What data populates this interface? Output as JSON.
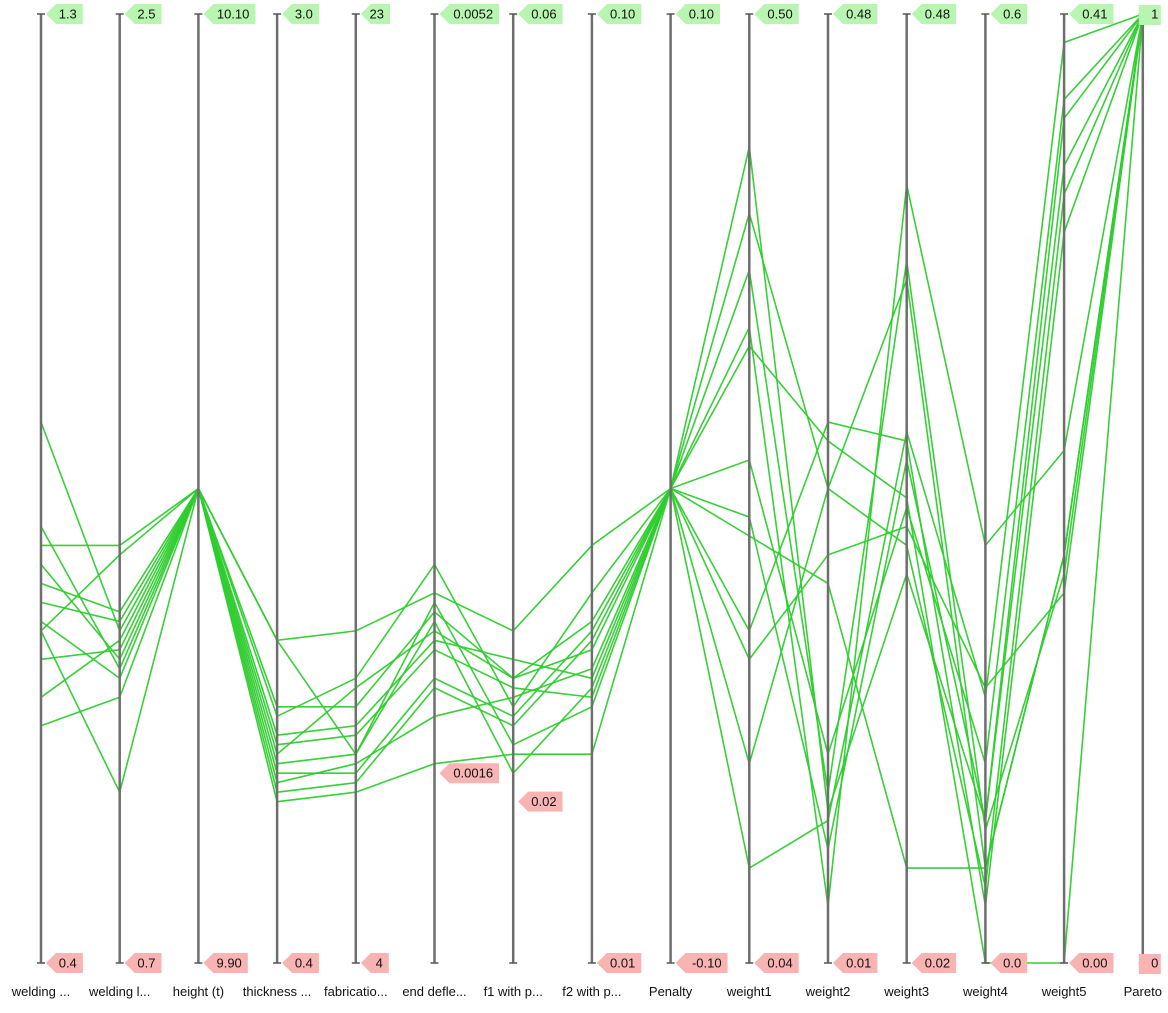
{
  "chart_data": {
    "type": "parallel-coordinates",
    "axes": [
      {
        "label": "welding ...",
        "max_label": "1.3",
        "min_label": "0.4"
      },
      {
        "label": "welding l...",
        "max_label": "2.5",
        "min_label": "0.7"
      },
      {
        "label": "height (t)",
        "max_label": "10.10",
        "min_label": "9.90"
      },
      {
        "label": "thickness ...",
        "max_label": "3.0",
        "min_label": "0.4"
      },
      {
        "label": "fabricatio...",
        "max_label": "23",
        "min_label": "4"
      },
      {
        "label": "end defle...",
        "max_label": "0.0052",
        "min_label": "0.0016"
      },
      {
        "label": "f1 with p...",
        "max_label": "0.06",
        "min_label": "0.02"
      },
      {
        "label": "f2 with p...",
        "max_label": "0.10",
        "min_label": "0.01"
      },
      {
        "label": "Penalty",
        "max_label": "0.10",
        "min_label": "-0.10"
      },
      {
        "label": "weight1",
        "max_label": "0.50",
        "min_label": "0.04"
      },
      {
        "label": "weight2",
        "max_label": "0.48",
        "min_label": "0.01"
      },
      {
        "label": "weight3",
        "max_label": "0.48",
        "min_label": "0.02"
      },
      {
        "label": "weight4",
        "max_label": "0.6",
        "min_label": "0.0"
      },
      {
        "label": "weight5",
        "max_label": "0.41",
        "min_label": "0.00"
      },
      {
        "label": "Pareto",
        "max_label": "1",
        "min_label": "0"
      }
    ],
    "range_note": "each axis normalized; 1 = top of axis (max), 0 = bottom (min)",
    "series": [
      {
        "values": [
          0.57,
          0.35,
          0.5,
          0.34,
          0.35,
          0.39,
          0.35,
          0.44,
          0.5,
          0.65,
          0.55,
          0.49,
          0.0,
          0.0,
          1
        ]
      },
      {
        "values": [
          0.44,
          0.44,
          0.5,
          0.26,
          0.3,
          0.42,
          0.27,
          0.39,
          0.5,
          0.79,
          0.5,
          0.72,
          0.1,
          0.43,
          1
        ]
      },
      {
        "values": [
          0.36,
          0.3,
          0.5,
          0.24,
          0.25,
          0.34,
          0.32,
          0.3,
          0.5,
          0.53,
          0.22,
          0.48,
          0.21,
          0.91,
          1
        ]
      },
      {
        "values": [
          0.42,
          0.32,
          0.5,
          0.27,
          0.27,
          0.37,
          0.3,
          0.33,
          0.5,
          0.47,
          0.12,
          0.53,
          0.15,
          0.84,
          1
        ]
      },
      {
        "values": [
          0.38,
          0.36,
          0.5,
          0.22,
          0.29,
          0.35,
          0.3,
          0.36,
          0.5,
          0.35,
          0.57,
          0.55,
          0.06,
          0.77,
          1
        ]
      },
      {
        "values": [
          0.32,
          0.33,
          0.5,
          0.23,
          0.24,
          0.33,
          0.29,
          0.28,
          0.5,
          0.21,
          0.5,
          0.44,
          0.08,
          0.81,
          1
        ]
      },
      {
        "values": [
          0.28,
          0.34,
          0.5,
          0.18,
          0.19,
          0.29,
          0.25,
          0.34,
          0.5,
          0.1,
          0.15,
          0.56,
          0.28,
          0.97,
          1
        ]
      },
      {
        "values": [
          0.46,
          0.31,
          0.5,
          0.2,
          0.2,
          0.3,
          0.26,
          0.35,
          0.5,
          0.67,
          0.06,
          0.82,
          0.44,
          0.54,
          1
        ]
      },
      {
        "values": [
          0.4,
          0.37,
          0.5,
          0.19,
          0.21,
          0.26,
          0.28,
          0.31,
          0.5,
          0.73,
          0.18,
          0.74,
          0.14,
          0.41,
          1
        ]
      },
      {
        "values": [
          0.35,
          0.18,
          0.5,
          0.17,
          0.18,
          0.21,
          0.22,
          0.22,
          0.5,
          0.45,
          0.4,
          0.1,
          0.1,
          0.43,
          1
        ]
      },
      {
        "values": [
          0.25,
          0.28,
          0.5,
          0.21,
          0.22,
          0.36,
          0.2,
          0.29,
          0.5,
          0.32,
          0.43,
          0.46,
          0.29,
          0.39,
          1
        ]
      },
      {
        "values": [
          0.35,
          0.43,
          0.5,
          0.34,
          0.22,
          0.38,
          0.23,
          0.27,
          0.5,
          0.86,
          0.16,
          0.41,
          0.15,
          0.89,
          1
        ]
      }
    ]
  }
}
